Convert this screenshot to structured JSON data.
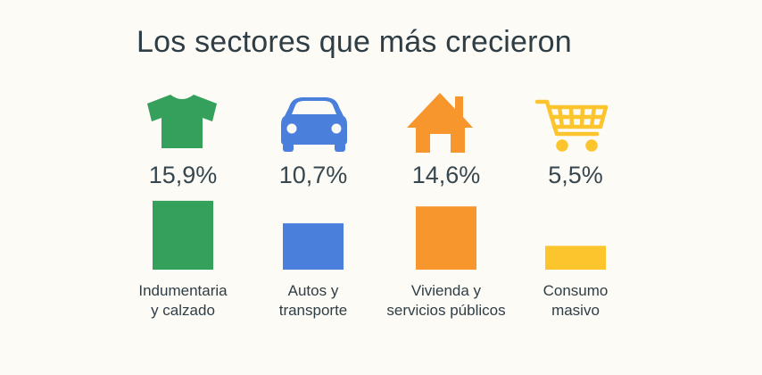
{
  "title": "Los sectores que más crecieron",
  "chart_data": {
    "type": "bar",
    "title": "Los sectores que más crecieron",
    "categories": [
      [
        "Indumentaria",
        "y calzado"
      ],
      [
        "Autos y",
        "transporte"
      ],
      [
        "Vivienda y",
        "servicios públicos"
      ],
      [
        "Consumo",
        "masivo"
      ]
    ],
    "values": [
      15.9,
      10.7,
      14.6,
      5.5
    ],
    "value_labels": [
      "15,9%",
      "10,7%",
      "14,6%",
      "5,5%"
    ],
    "colors": [
      "#34a05b",
      "#4a7fdc",
      "#f7962d",
      "#fcc42d"
    ],
    "icons": [
      "tshirt-icon",
      "car-icon",
      "house-icon",
      "shopping-cart-icon"
    ],
    "unit": "%"
  }
}
